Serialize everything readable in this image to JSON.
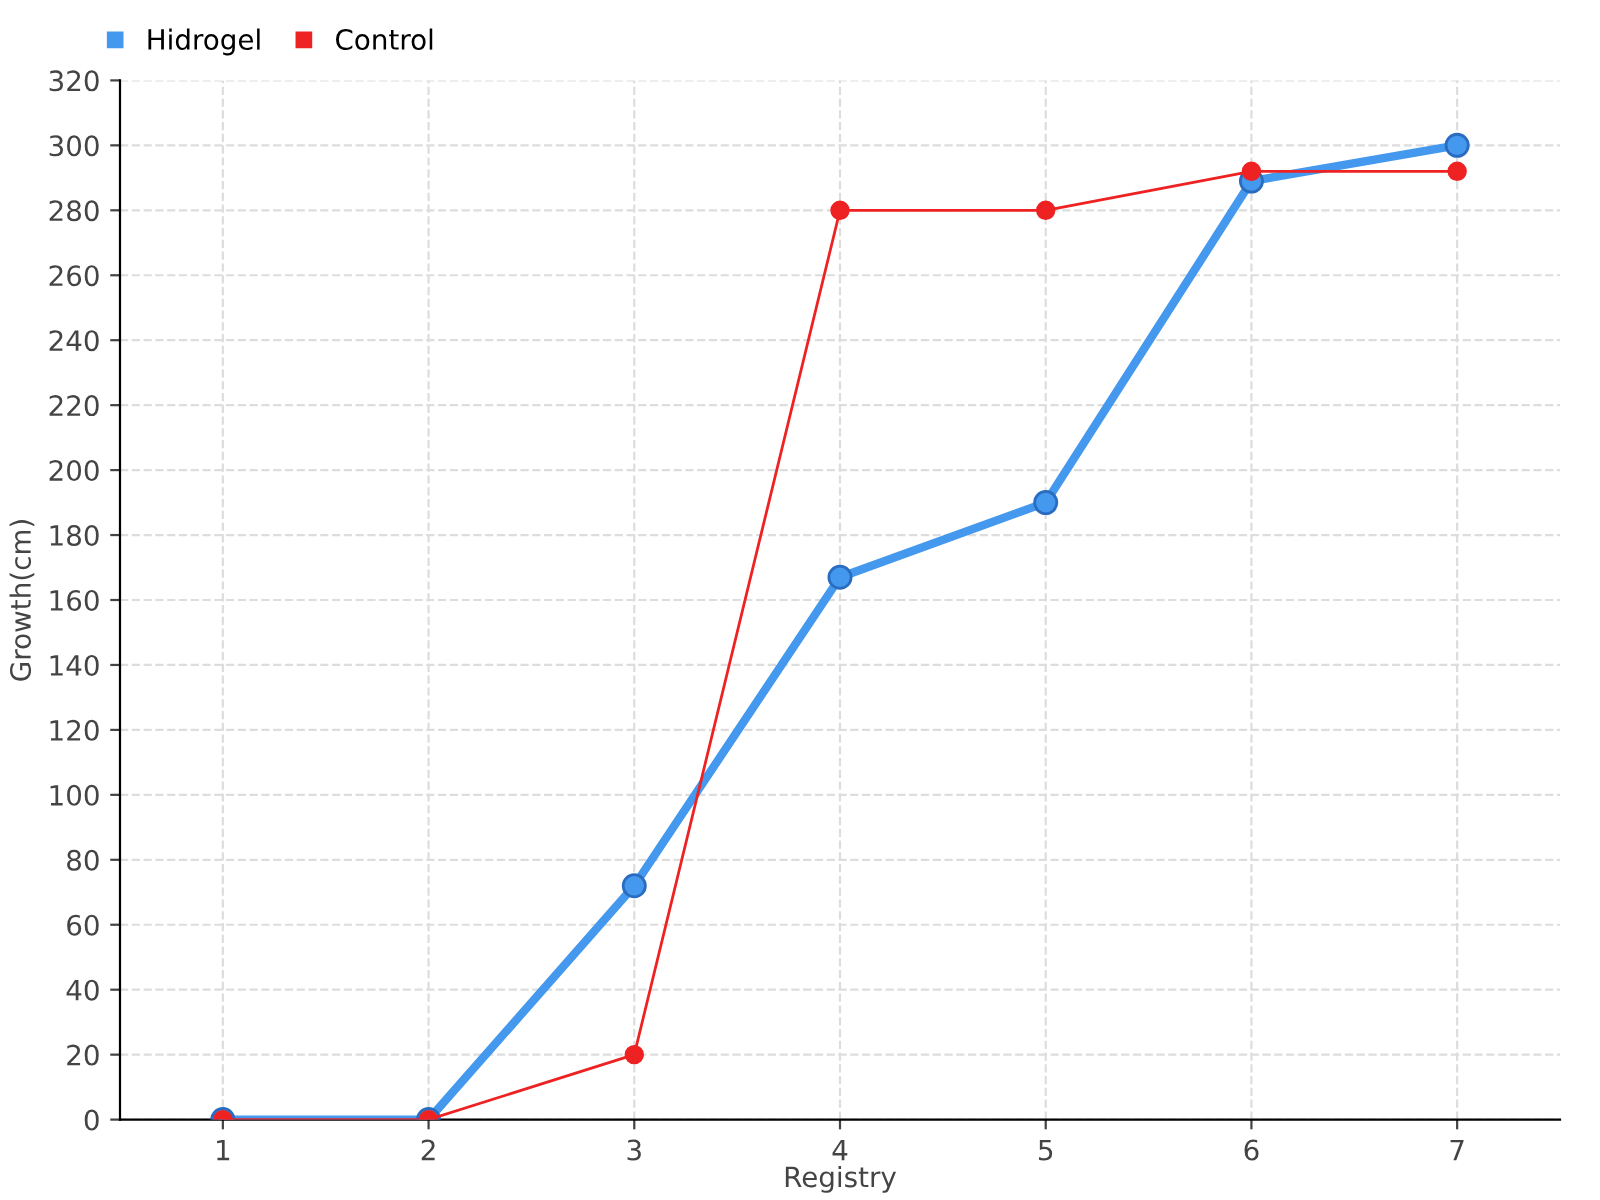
{
  "chart_data": {
    "type": "line",
    "xlabel": "Registry",
    "ylabel": "Growth(cm)",
    "x": [
      1,
      2,
      3,
      4,
      5,
      6,
      7
    ],
    "series": [
      {
        "name": "Hidrogel",
        "color": "#4499ee",
        "values": [
          0,
          0,
          72,
          167,
          190,
          289,
          300
        ]
      },
      {
        "name": "Control",
        "color": "#ee2222",
        "values": [
          0,
          0,
          20,
          280,
          280,
          292,
          292
        ]
      }
    ],
    "xlim": [
      0.5,
      7.5
    ],
    "xticks": [
      1,
      2,
      3,
      4,
      5,
      6,
      7
    ],
    "ylim": [
      0,
      320
    ],
    "yticks": [
      0,
      20,
      40,
      60,
      80,
      100,
      120,
      140,
      160,
      180,
      200,
      220,
      240,
      260,
      280,
      300,
      320
    ],
    "grid": true,
    "legend": "top left",
    "marker": "circle",
    "line_style": "solid"
  }
}
